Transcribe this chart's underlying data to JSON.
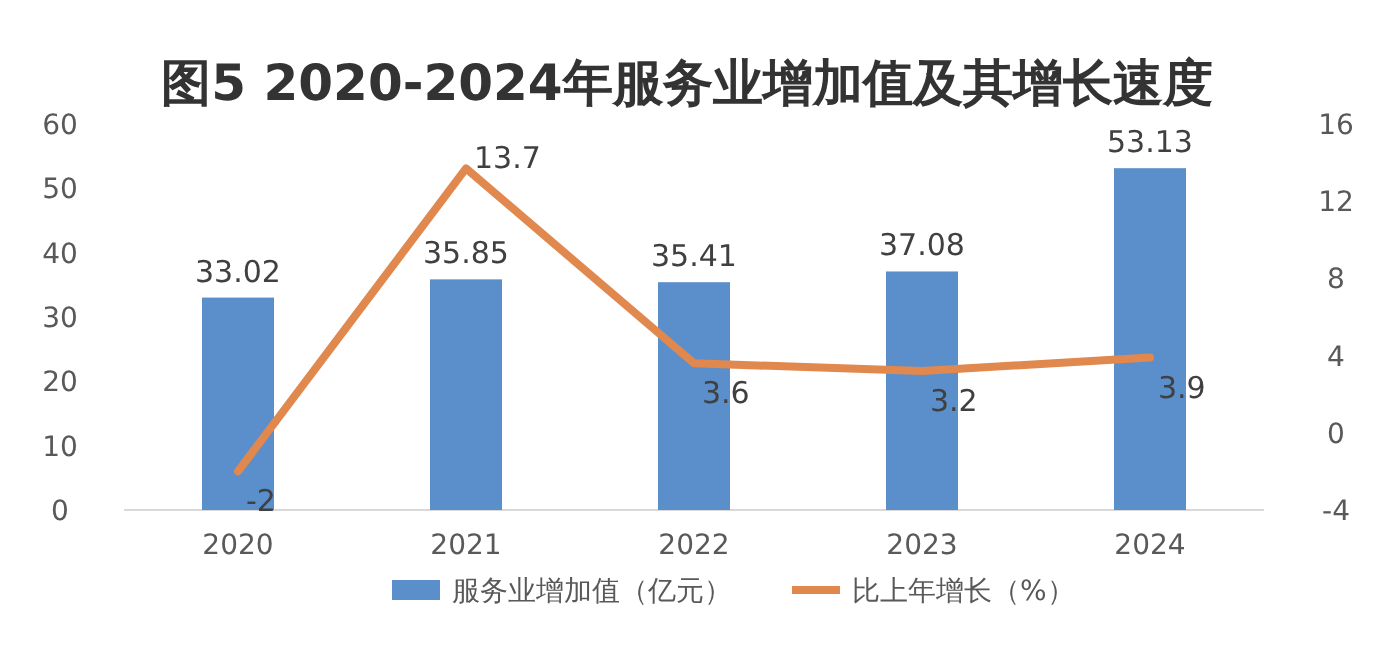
{
  "chart_data": {
    "type": "bar",
    "title": "图5 2020-2024年服务业增加值及其增长速度",
    "categories": [
      "2020",
      "2021",
      "2022",
      "2023",
      "2024"
    ],
    "series": [
      {
        "name": "服务业增加值（亿元）",
        "color": "#5b8fcc",
        "values": [
          33.02,
          35.85,
          35.41,
          37.08,
          53.13
        ]
      },
      {
        "name": "比上年增长（%）",
        "color": "#e0884e",
        "type": "line",
        "axis": "y2",
        "values": [
          -2,
          13.7,
          3.6,
          3.2,
          3.9
        ]
      }
    ],
    "ylim": [
      0,
      60
    ],
    "yticks": [
      0,
      10,
      20,
      30,
      40,
      50,
      60
    ],
    "y2lim": [
      -4,
      16
    ],
    "y2ticks": [
      -4,
      0,
      4,
      8,
      12,
      16
    ],
    "data_labels": true,
    "legend": "bottom"
  }
}
